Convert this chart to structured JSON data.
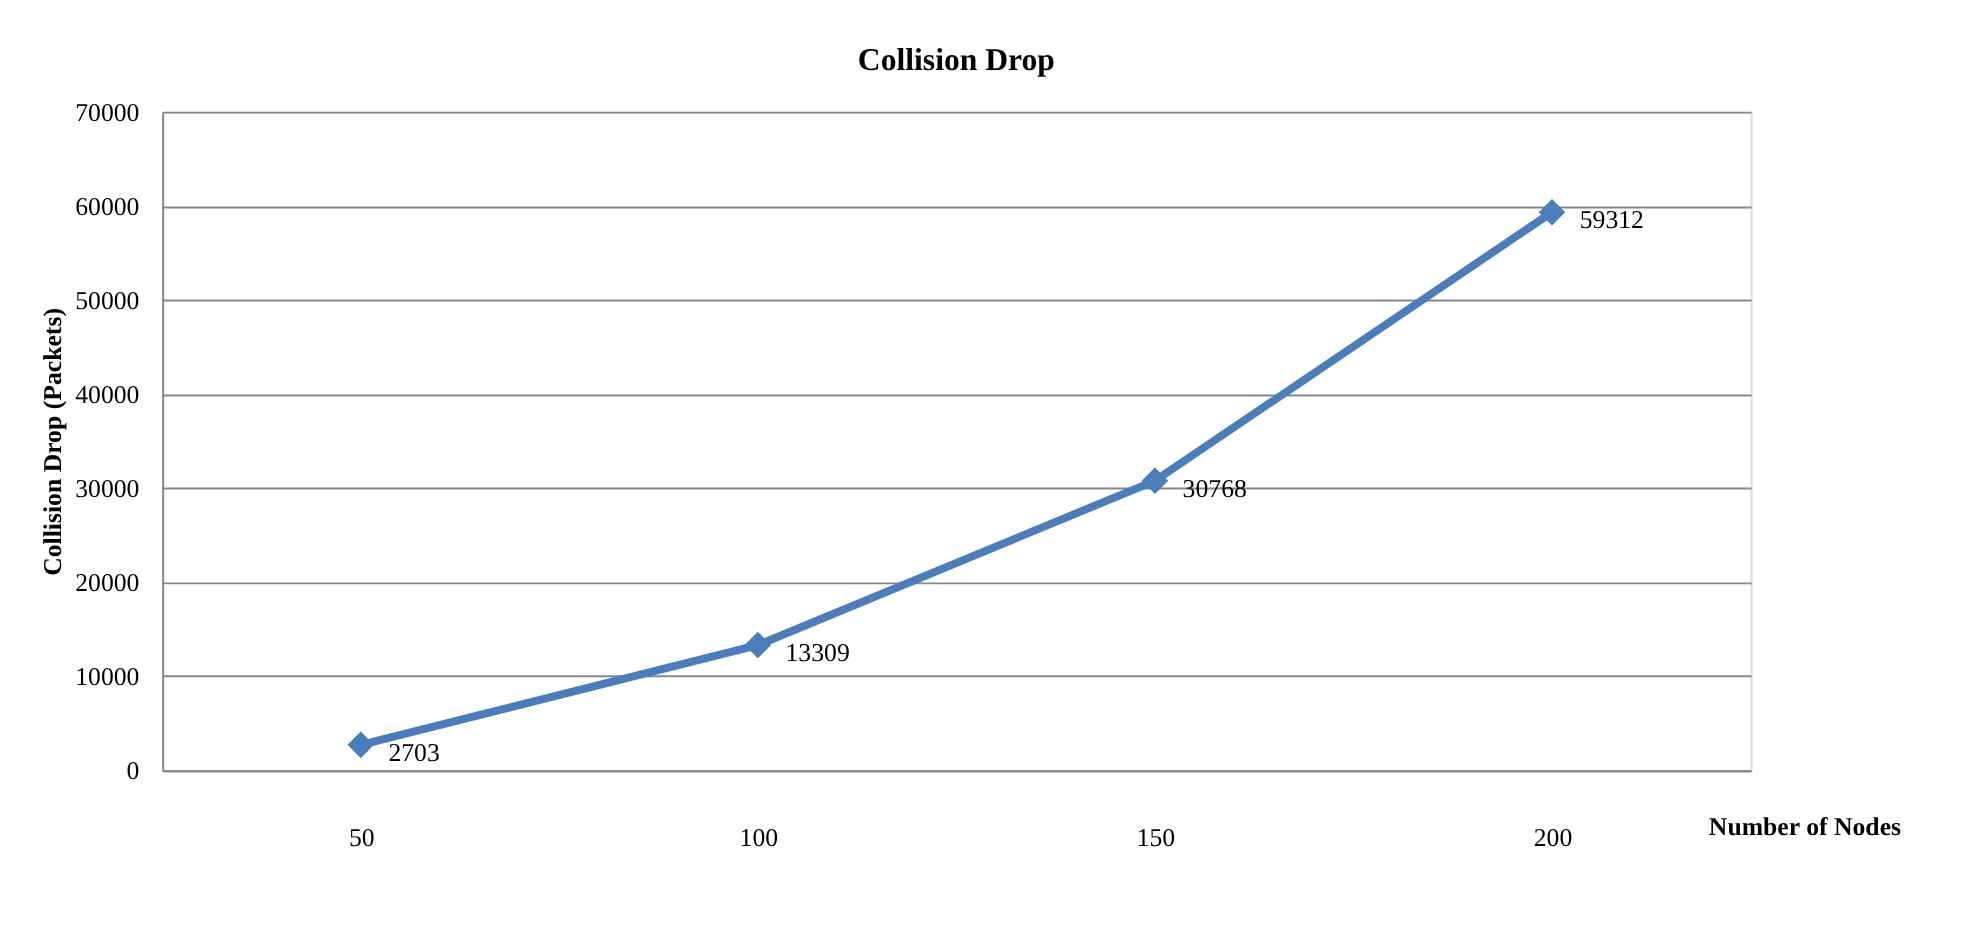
{
  "chart_data": {
    "type": "line",
    "title": "Collision Drop",
    "xlabel": "Number of Nodes",
    "ylabel": "Collision Drop (Packets)",
    "categories": [
      "50",
      "100",
      "150",
      "200"
    ],
    "series": [
      {
        "color": "#4a7ebb",
        "values": [
          2703,
          13309,
          30768,
          59312
        ]
      }
    ],
    "ylim": [
      0,
      70000
    ],
    "yticks": [
      0,
      10000,
      20000,
      30000,
      40000,
      50000,
      60000,
      70000
    ],
    "grid": "y",
    "marker": "diamond",
    "line_style": "solid",
    "data_labels": true,
    "legend": false
  }
}
